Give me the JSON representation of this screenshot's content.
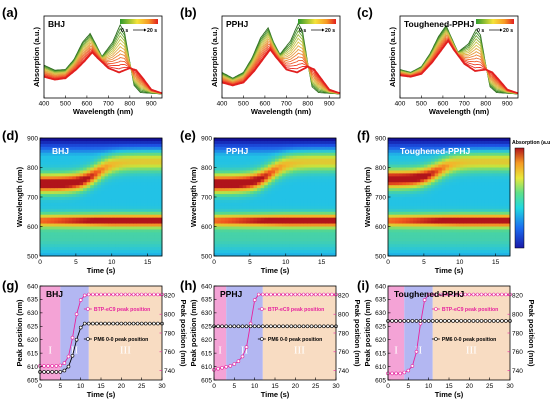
{
  "chart_data": [
    {
      "id": "a",
      "type": "line",
      "panel_label": "(a)",
      "title": "BHJ",
      "xlabel": "Wavelength (nm)",
      "ylabel": "Absorption (a.u.)",
      "xlim": [
        400,
        950
      ],
      "xticks": [
        "400",
        "500",
        "600",
        "700",
        "800",
        "900"
      ],
      "colorbar": {
        "start": "0 s",
        "end": "20 s"
      },
      "final_trace": [
        [
          400,
          0.24
        ],
        [
          450,
          0.2
        ],
        [
          500,
          0.22
        ],
        [
          550,
          0.34
        ],
        [
          590,
          0.46
        ],
        [
          625,
          0.58
        ],
        [
          650,
          0.5
        ],
        [
          700,
          0.36
        ],
        [
          750,
          0.3
        ],
        [
          800,
          0.36
        ],
        [
          830,
          0.33
        ],
        [
          860,
          0.22
        ],
        [
          900,
          0.06
        ],
        [
          950,
          0.01
        ]
      ],
      "initial_trace": [
        [
          400,
          0.4
        ],
        [
          450,
          0.33
        ],
        [
          500,
          0.34
        ],
        [
          540,
          0.48
        ],
        [
          580,
          0.72
        ],
        [
          615,
          0.84
        ],
        [
          640,
          0.7
        ],
        [
          670,
          0.52
        ],
        [
          720,
          0.72
        ],
        [
          755,
          0.96
        ],
        [
          775,
          0.86
        ],
        [
          800,
          0.44
        ],
        [
          820,
          0.12
        ],
        [
          850,
          0.02
        ],
        [
          950,
          0.0
        ]
      ]
    },
    {
      "id": "b",
      "type": "line",
      "panel_label": "(b)",
      "title": "PPHJ",
      "xlabel": "Wavelength (nm)",
      "ylabel": "Absorption (a.u.)",
      "xlim": [
        400,
        950
      ],
      "xticks": [
        "400",
        "500",
        "600",
        "700",
        "800",
        "900"
      ],
      "colorbar": {
        "start": "0 s",
        "end": "20 s"
      },
      "final_trace": [
        [
          400,
          0.16
        ],
        [
          450,
          0.12
        ],
        [
          500,
          0.16
        ],
        [
          550,
          0.32
        ],
        [
          590,
          0.48
        ],
        [
          625,
          0.62
        ],
        [
          650,
          0.52
        ],
        [
          700,
          0.34
        ],
        [
          750,
          0.3
        ],
        [
          800,
          0.38
        ],
        [
          830,
          0.34
        ],
        [
          860,
          0.22
        ],
        [
          900,
          0.06
        ],
        [
          950,
          0.01
        ]
      ],
      "initial_trace": [
        [
          400,
          0.3
        ],
        [
          450,
          0.22
        ],
        [
          500,
          0.3
        ],
        [
          540,
          0.5
        ],
        [
          580,
          0.78
        ],
        [
          615,
          0.92
        ],
        [
          640,
          0.72
        ],
        [
          670,
          0.55
        ],
        [
          720,
          0.74
        ],
        [
          755,
          0.98
        ],
        [
          775,
          0.88
        ],
        [
          800,
          0.42
        ],
        [
          820,
          0.1
        ],
        [
          850,
          0.02
        ],
        [
          950,
          0.0
        ]
      ]
    },
    {
      "id": "c",
      "type": "line",
      "panel_label": "(c)",
      "title": "Toughened-PPHJ",
      "xlabel": "Wavelength (nm)",
      "ylabel": "Absorption (a.u.)",
      "xlim": [
        400,
        950
      ],
      "xticks": [
        "400",
        "500",
        "600",
        "700",
        "800",
        "900"
      ],
      "colorbar": {
        "start": "0 s",
        "end": "20 s"
      },
      "final_trace": [
        [
          400,
          0.26
        ],
        [
          450,
          0.24
        ],
        [
          500,
          0.28
        ],
        [
          550,
          0.44
        ],
        [
          590,
          0.6
        ],
        [
          625,
          0.74
        ],
        [
          650,
          0.62
        ],
        [
          700,
          0.42
        ],
        [
          750,
          0.32
        ],
        [
          800,
          0.34
        ],
        [
          830,
          0.3
        ],
        [
          860,
          0.2
        ],
        [
          900,
          0.06
        ],
        [
          950,
          0.01
        ]
      ],
      "initial_trace": [
        [
          400,
          0.34
        ],
        [
          450,
          0.3
        ],
        [
          500,
          0.38
        ],
        [
          540,
          0.56
        ],
        [
          580,
          0.8
        ],
        [
          615,
          0.95
        ],
        [
          640,
          0.78
        ],
        [
          670,
          0.58
        ],
        [
          720,
          0.7
        ],
        [
          755,
          0.9
        ],
        [
          775,
          0.82
        ],
        [
          800,
          0.4
        ],
        [
          820,
          0.1
        ],
        [
          850,
          0.02
        ],
        [
          950,
          0.0
        ]
      ]
    },
    {
      "id": "d",
      "type": "heatmap",
      "panel_label": "(d)",
      "title": "BHJ",
      "xlabel": "Time (s)",
      "ylabel": "Wavelength (nm)",
      "xlim": [
        0,
        17
      ],
      "ylim": [
        500,
        900
      ],
      "xticks": [
        "0",
        "5",
        "10",
        "15"
      ],
      "yticks": [
        "500",
        "600",
        "700",
        "800",
        "900"
      ],
      "features": {
        "transition_time_s": 8,
        "acceptor_band_initial_nm": 745,
        "donor_band_nm": 620
      }
    },
    {
      "id": "e",
      "type": "heatmap",
      "panel_label": "(e)",
      "title": "PPHJ",
      "xlabel": "Time (s)",
      "ylabel": "Wavelength (nm)",
      "xlim": [
        0,
        17
      ],
      "ylim": [
        500,
        900
      ],
      "xticks": [
        "0",
        "5",
        "10",
        "15"
      ],
      "yticks": [
        "500",
        "600",
        "700",
        "800",
        "900"
      ],
      "features": {
        "transition_time_s": 8,
        "acceptor_band_initial_nm": 745,
        "donor_band_nm": 620
      }
    },
    {
      "id": "f",
      "type": "heatmap",
      "panel_label": "(f)",
      "title": "Toughened-PPHJ",
      "xlabel": "Time (s)",
      "ylabel": "Wavelength (nm)",
      "xlim": [
        0,
        17
      ],
      "ylim": [
        500,
        900
      ],
      "xticks": [
        "0",
        "5",
        "10",
        "15"
      ],
      "yticks": [
        "500",
        "600",
        "700",
        "800",
        "900"
      ],
      "colorbar_label": "Absorption (a.u.)",
      "features": {
        "transition_time_s": 7,
        "acceptor_band_initial_nm": 760,
        "donor_band_nm": 620
      }
    },
    {
      "id": "g",
      "type": "line",
      "panel_label": "(g)",
      "title": "BHJ",
      "xlabel": "Time (s)",
      "ylabel": "Peak position (nm)",
      "ylabel_right": "Peak position (nm)",
      "xlim": [
        0,
        30
      ],
      "ylim": [
        605,
        640
      ],
      "ylim_right": [
        730,
        830
      ],
      "xticks": [
        "0",
        "5",
        "10",
        "15",
        "20",
        "25",
        "30"
      ],
      "yticks": [
        "605",
        "610",
        "615",
        "620",
        "625",
        "630",
        "635",
        "640"
      ],
      "yticks_right": [
        "740",
        "760",
        "780",
        "800",
        "820"
      ],
      "regions": [
        {
          "label": "I",
          "from": 0,
          "to": 5,
          "color": "#f4a3d6"
        },
        {
          "label": "II",
          "from": 5,
          "to": 12,
          "color": "#b3b7f2"
        },
        {
          "label": "III",
          "from": 12,
          "to": 30,
          "color": "#f8dcc2"
        }
      ],
      "series": [
        {
          "name": "BTP-eC9 peak position",
          "axis": "right",
          "color": "#e6239e",
          "x": [
            0,
            1,
            2,
            3,
            4,
            5,
            6,
            7,
            8,
            9,
            10,
            11,
            12,
            13,
            14,
            15,
            16,
            17,
            18,
            19,
            20,
            21,
            22,
            23,
            24,
            25,
            26,
            27,
            28,
            29,
            30
          ],
          "y": [
            745,
            745,
            745,
            745,
            745,
            745.5,
            748,
            755,
            775,
            800,
            815,
            820,
            821,
            821,
            821,
            821,
            821,
            821,
            821,
            821,
            821,
            821,
            821,
            821,
            821,
            821,
            821,
            821,
            821,
            821,
            821
          ]
        },
        {
          "name": "PM6 0-0 peak position",
          "axis": "left",
          "color": "#000000",
          "x": [
            0,
            1,
            2,
            3,
            4,
            5,
            6,
            7,
            8,
            9,
            10,
            11,
            12,
            13,
            14,
            15,
            16,
            17,
            18,
            19,
            20,
            21,
            22,
            23,
            24,
            25,
            26,
            27,
            28,
            29,
            30
          ],
          "y": [
            608,
            608,
            608,
            608,
            608,
            608,
            608.5,
            610,
            614,
            620,
            624.5,
            626,
            626,
            626,
            626,
            626,
            626,
            626,
            626,
            626,
            626,
            626,
            626,
            626,
            626,
            626,
            626,
            626,
            626,
            626,
            626
          ]
        }
      ]
    },
    {
      "id": "h",
      "type": "line",
      "panel_label": "(h)",
      "title": "PPHJ",
      "xlabel": "Time (s)",
      "ylabel": "Peak position (nm)",
      "ylabel_right": "Peak position (nm)",
      "xlim": [
        0,
        30
      ],
      "ylim": [
        605,
        640
      ],
      "ylim_right": [
        730,
        830
      ],
      "xticks": [
        "0",
        "5",
        "10",
        "15",
        "20",
        "25",
        "30"
      ],
      "yticks": [
        "605",
        "610",
        "615",
        "620",
        "625",
        "630",
        "635",
        "640"
      ],
      "yticks_right": [
        "740",
        "760",
        "780",
        "800",
        "820"
      ],
      "regions": [
        {
          "label": "I",
          "from": 0,
          "to": 3,
          "color": "#f4a3d6"
        },
        {
          "label": "II",
          "from": 3,
          "to": 12,
          "color": "#b3b7f2"
        },
        {
          "label": "III",
          "from": 12,
          "to": 30,
          "color": "#f8dcc2"
        }
      ],
      "series": [
        {
          "name": "BTP-eC9 peak position",
          "axis": "right",
          "color": "#e6239e",
          "x": [
            0,
            1,
            2,
            3,
            4,
            5,
            6,
            7,
            8,
            9,
            10,
            11,
            12,
            13,
            14,
            15,
            16,
            17,
            18,
            19,
            20,
            21,
            22,
            23,
            24,
            25,
            26,
            27,
            28,
            29,
            30
          ],
          "y": [
            741,
            742,
            743,
            744,
            745,
            747,
            750,
            755,
            765,
            790,
            815,
            821,
            821,
            821,
            821,
            821,
            821,
            821,
            821,
            821,
            821,
            821,
            821,
            821,
            821,
            821,
            821,
            821,
            821,
            821,
            821
          ]
        },
        {
          "name": "PM6 0-0 peak position",
          "axis": "left",
          "color": "#000000",
          "x": [
            0,
            1,
            2,
            3,
            4,
            5,
            6,
            7,
            8,
            9,
            10,
            11,
            12,
            13,
            14,
            15,
            16,
            17,
            18,
            19,
            20,
            21,
            22,
            23,
            24,
            25,
            26,
            27,
            28,
            29,
            30
          ],
          "y": [
            625,
            625,
            625,
            625,
            625,
            625,
            625,
            625,
            625,
            625,
            625,
            625,
            625,
            625,
            625,
            625,
            625,
            625,
            625,
            625,
            625,
            625,
            625,
            625,
            625,
            625,
            625,
            625,
            625,
            625,
            625
          ]
        }
      ]
    },
    {
      "id": "i",
      "type": "line",
      "panel_label": "(i)",
      "title": "Toughened-PPHJ",
      "xlabel": "Time (s)",
      "ylabel": "Peak position (nm)",
      "ylabel_right": "Peak position (nm)",
      "xlim": [
        0,
        30
      ],
      "ylim": [
        605,
        640
      ],
      "ylim_right": [
        730,
        830
      ],
      "xticks": [
        "0",
        "5",
        "10",
        "15",
        "20",
        "25",
        "30"
      ],
      "yticks": [
        "605",
        "610",
        "615",
        "620",
        "625",
        "630",
        "635",
        "640"
      ],
      "yticks_right": [
        "740",
        "760",
        "780",
        "800",
        "820"
      ],
      "regions": [
        {
          "label": "I",
          "from": 0,
          "to": 4,
          "color": "#f4a3d6"
        },
        {
          "label": "II",
          "from": 4,
          "to": 11,
          "color": "#b3b7f2"
        },
        {
          "label": "III",
          "from": 11,
          "to": 30,
          "color": "#f8dcc2"
        }
      ],
      "series": [
        {
          "name": "BTP-eC9 peak position",
          "axis": "right",
          "color": "#e6239e",
          "x": [
            0,
            1,
            2,
            3,
            4,
            5,
            6,
            7,
            8,
            9,
            10,
            11,
            12,
            13,
            14,
            15,
            16,
            17,
            18,
            19,
            20,
            21,
            22,
            23,
            24,
            25,
            26,
            27,
            28,
            29,
            30
          ],
          "y": [
            737,
            737,
            737,
            737,
            738,
            740,
            745,
            760,
            790,
            815,
            821,
            821,
            821,
            821,
            821,
            821,
            821,
            821,
            821,
            821,
            821,
            821,
            821,
            821,
            821,
            821,
            821,
            821,
            821,
            821,
            821
          ]
        },
        {
          "name": "PM6 0-0 peak position",
          "axis": "left",
          "color": "#000000",
          "x": [
            0,
            1,
            2,
            3,
            4,
            5,
            6,
            7,
            8,
            9,
            10,
            11,
            12,
            13,
            14,
            15,
            16,
            17,
            18,
            19,
            20,
            21,
            22,
            23,
            24,
            25,
            26,
            27,
            28,
            29,
            30
          ],
          "y": [
            627,
            627,
            627,
            627,
            627,
            627,
            627,
            627,
            627,
            627,
            627,
            627,
            627,
            627,
            627,
            627,
            627,
            627,
            627,
            627,
            627,
            627,
            627,
            627,
            627,
            627,
            627,
            627,
            627,
            627,
            627
          ]
        }
      ]
    }
  ]
}
